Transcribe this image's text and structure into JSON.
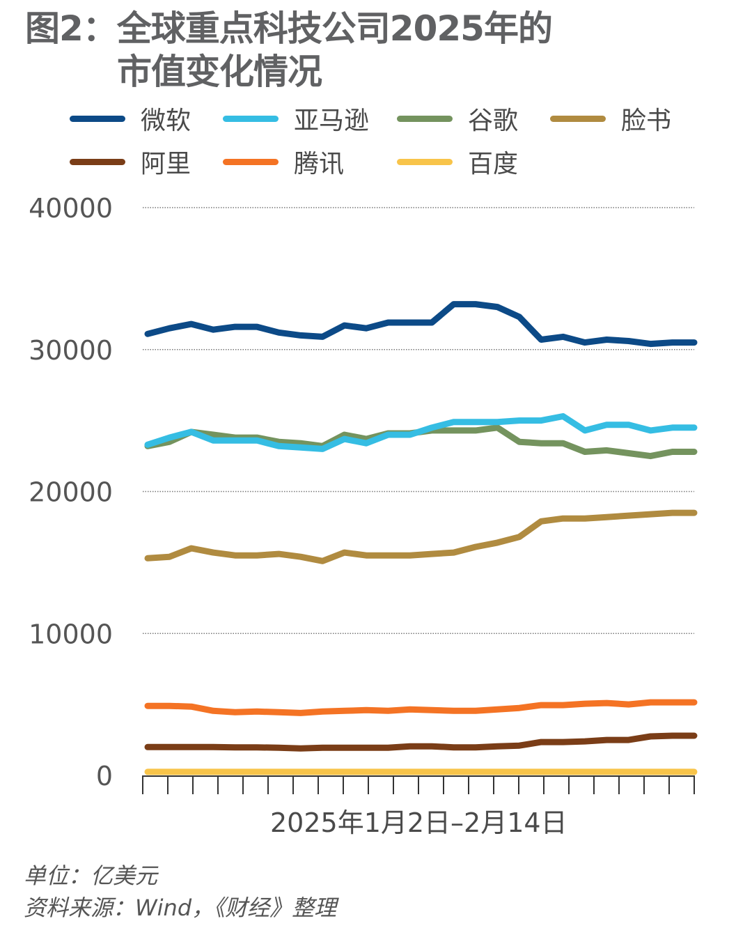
{
  "title_line1": "图2：全球重点科技公司2025年的",
  "title_line2": "市值变化情况",
  "footer": {
    "unit": "单位：亿美元",
    "source": "资料来源：Wind，《财经》整理"
  },
  "chart_data": {
    "type": "line",
    "title": "图2：全球重点科技公司2025年的市值变化情况",
    "xlabel": "2025年1月2日–2月14日",
    "ylabel": "",
    "unit": "亿美元",
    "ylim": [
      0,
      40000
    ],
    "yticks": [
      "0",
      "10000",
      "20000",
      "30000",
      "40000"
    ],
    "grid": true,
    "legend": "top",
    "series": [
      {
        "name": "微软",
        "color": "#0c4a87",
        "values": [
          31100,
          31500,
          31800,
          31400,
          31600,
          31600,
          31200,
          31000,
          30900,
          31700,
          31500,
          31900,
          31900,
          31900,
          33200,
          33200,
          33000,
          32300,
          30700,
          30900,
          30500,
          30700,
          30600,
          30400,
          30500,
          30500
        ]
      },
      {
        "name": "亚马逊",
        "color": "#35bde3",
        "values": [
          23300,
          23800,
          24200,
          23600,
          23600,
          23600,
          23200,
          23100,
          23000,
          23700,
          23400,
          24000,
          24000,
          24500,
          24900,
          24900,
          24900,
          25000,
          25000,
          25300,
          24300,
          24700,
          24700,
          24300,
          24500,
          24500
        ]
      },
      {
        "name": "谷歌",
        "color": "#74935e",
        "values": [
          23200,
          23500,
          24200,
          24000,
          23800,
          23800,
          23500,
          23400,
          23200,
          24000,
          23700,
          24100,
          24100,
          24300,
          24300,
          24300,
          24500,
          23500,
          23400,
          23400,
          22800,
          22900,
          22700,
          22500,
          22800,
          22800
        ]
      },
      {
        "name": "脸书",
        "color": "#b08b40",
        "values": [
          15300,
          15400,
          16000,
          15700,
          15500,
          15500,
          15600,
          15400,
          15100,
          15700,
          15500,
          15500,
          15500,
          15600,
          15700,
          16100,
          16400,
          16800,
          17900,
          18100,
          18100,
          18200,
          18300,
          18400,
          18500,
          18500
        ]
      },
      {
        "name": "阿里",
        "color": "#7a3d17",
        "values": [
          2000,
          2000,
          2000,
          2000,
          1980,
          1980,
          1950,
          1900,
          1950,
          1950,
          1950,
          1950,
          2050,
          2050,
          1980,
          1980,
          2050,
          2100,
          2350,
          2350,
          2400,
          2500,
          2500,
          2750,
          2800,
          2800
        ]
      },
      {
        "name": "腾讯",
        "color": "#f47324",
        "values": [
          4900,
          4900,
          4850,
          4550,
          4450,
          4500,
          4450,
          4400,
          4500,
          4550,
          4600,
          4550,
          4650,
          4600,
          4550,
          4550,
          4650,
          4750,
          4950,
          4950,
          5050,
          5100,
          5000,
          5150,
          5150,
          5150
        ]
      },
      {
        "name": "百度",
        "color": "#f8c44a",
        "values": [
          250,
          250,
          250,
          250,
          250,
          250,
          250,
          250,
          250,
          250,
          250,
          250,
          250,
          250,
          250,
          250,
          250,
          250,
          250,
          250,
          250,
          250,
          250,
          250,
          250,
          250
        ]
      }
    ]
  }
}
